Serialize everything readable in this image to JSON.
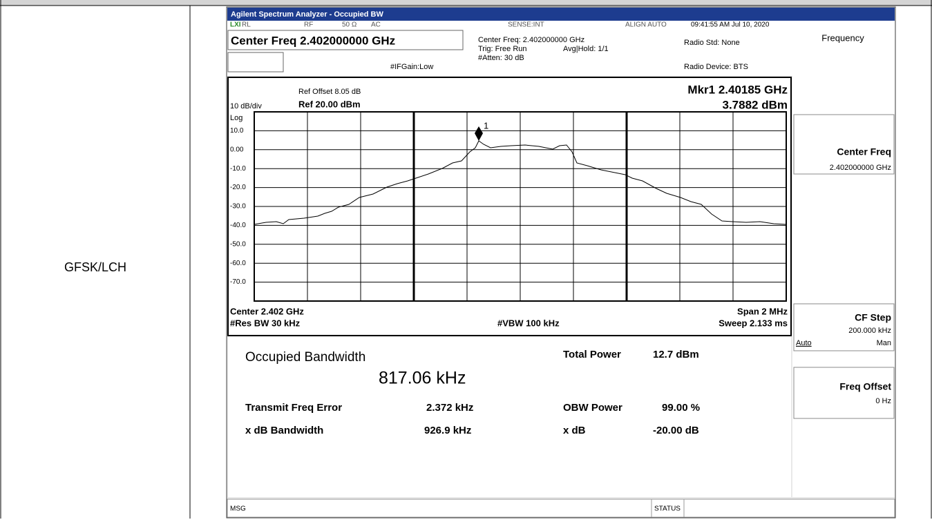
{
  "table": {
    "rows": [
      {
        "label": "GFSK/LCH"
      }
    ]
  },
  "analyzer": {
    "title_bar": "Agilent Spectrum Analyzer - Occupied BW",
    "status_row": {
      "rl": "RL",
      "rf": "RF",
      "impedance": "50 Ω",
      "coupling": "AC",
      "sense": "SENSE:INT",
      "align": "ALIGN AUTO",
      "timestamp": "09:41:55 AM Jul 10, 2020"
    },
    "center_freq_banner": "Center Freq 2.402000000 GHz",
    "settings": {
      "center_freq": "Center Freq: 2.402000000 GHz",
      "trig": "Trig: Free Run",
      "avg_hold": "Avg|Hold: 1/1",
      "atten": "#Atten: 30 dB",
      "if_gain": "#IFGain:Low",
      "radio_std": "Radio Std: None",
      "radio_device": "Radio Device: BTS"
    },
    "graph": {
      "ref_offset": "Ref Offset 8.05 dB",
      "scale": "10 dB/div",
      "ref_level": "Ref 20.00 dBm",
      "log": "Log",
      "marker_freq": "Mkr1  2.40185 GHz",
      "marker_level": "3.7882 dBm",
      "marker_label": "1",
      "y_labels": [
        "10.0",
        "0.00",
        "-10.0",
        "-20.0",
        "-30.0",
        "-40.0",
        "-50.0",
        "-60.0",
        "-70.0"
      ],
      "center": "Center  2.402 GHz",
      "res_bw": "#Res BW  30 kHz",
      "vbw": "#VBW  100 kHz",
      "span": "Span 2 MHz",
      "sweep": "Sweep  2.133 ms"
    },
    "results": {
      "heading": "Occupied Bandwidth",
      "obw": "817.06 kHz",
      "total_power_label": "Total Power",
      "total_power": "12.7 dBm",
      "freq_error_label": "Transmit Freq Error",
      "freq_error": "2.372 kHz",
      "obw_power_label": "OBW Power",
      "obw_power": "99.00 %",
      "xdb_bw_label": "x dB Bandwidth",
      "xdb_bw": "926.9 kHz",
      "xdb_label": "x dB",
      "xdb": "-20.00 dB"
    },
    "softkeys": {
      "menu": "Frequency",
      "center_freq": "Center Freq",
      "center_freq_value": "2.402000000 GHz",
      "cf_step": "CF Step",
      "cf_step_value": "200.000 kHz",
      "auto": "Auto",
      "man": "Man",
      "freq_offset": "Freq Offset",
      "freq_offset_value": "0 Hz"
    },
    "bottom_bar": {
      "msg": "MSG",
      "status": "STATUS"
    }
  }
}
